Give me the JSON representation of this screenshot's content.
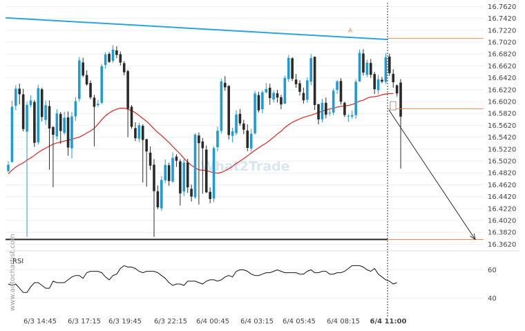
{
  "chart_data": {
    "type": "candlestick",
    "title": "",
    "watermark": "What2Trade",
    "side_label": "www.autochartist.com",
    "pattern_point_label": "A",
    "price_axis": {
      "ticks": [
        "16.7620",
        "16.7420",
        "16.7220",
        "16.7020",
        "16.6820",
        "16.6620",
        "16.6420",
        "16.6220",
        "16.6020",
        "16.5820",
        "16.5620",
        "16.5420",
        "16.5220",
        "16.5020",
        "16.4820",
        "16.4620",
        "16.4420",
        "16.4220",
        "16.4020",
        "16.3820",
        "16.3620"
      ],
      "ylim": [
        16.359,
        16.766
      ]
    },
    "time_axis": {
      "ticks": [
        "6/3 14:45",
        "6/3 17:15",
        "6/3 19:45",
        "6/3 22:15",
        "6/4 00:45",
        "6/4 03:15",
        "6/4 05:45",
        "6/4 08:15",
        "6/4 11:00"
      ],
      "current_label": "6/4 11:00"
    },
    "rsi": {
      "label": "RSI",
      "ticks": [
        "60",
        "40"
      ],
      "ylim": [
        28,
        72
      ],
      "values": [
        50,
        49,
        50,
        47,
        44,
        44,
        48,
        51,
        51,
        49,
        47,
        47,
        52,
        51,
        51,
        51,
        53,
        55,
        56,
        56,
        54,
        58,
        59,
        59,
        59,
        58,
        55,
        53,
        56,
        57,
        61,
        63,
        62,
        62,
        61,
        59,
        58,
        59,
        59,
        59,
        58,
        56,
        54,
        51,
        49,
        50,
        50,
        49,
        52,
        52,
        52,
        51,
        50,
        52,
        53,
        53,
        52,
        53,
        55,
        56,
        55,
        59,
        60,
        60,
        59,
        57,
        56,
        56,
        57,
        58,
        58,
        59,
        60,
        59,
        58,
        58,
        58,
        58,
        57,
        57,
        59,
        60,
        58,
        58,
        59,
        59,
        57,
        57,
        58,
        58,
        59,
        61,
        63,
        63,
        63,
        62,
        60,
        59,
        61,
        57,
        55,
        53,
        52,
        50,
        51
      ]
    },
    "resistance_line": {
      "start": 16.743,
      "end": 16.7065
    },
    "support_level": 16.37,
    "projection": {
      "from": 16.588,
      "to": 16.37
    },
    "level_lines": [
      16.7083,
      16.59,
      16.37
    ],
    "colors": {
      "bull": "#1c9bd8",
      "bear": "#2a2a2a",
      "ma": "#e0231a",
      "resistance": "#2ba3dc",
      "support": "#222222",
      "levels": "#f08a4b",
      "rsi": "#111111",
      "grid": "#eeeeee",
      "axis_text": "#444444",
      "label_a": "#f08a4b"
    },
    "candles": [
      [
        16.4852,
        16.4956,
        16.5019,
        16.4833
      ],
      [
        16.5002,
        16.5933,
        16.6033,
        16.4997
      ],
      [
        16.5949,
        16.6238,
        16.6296,
        16.5874
      ],
      [
        16.6238,
        16.6144,
        16.6322,
        16.5973
      ],
      [
        16.6143,
        16.5557,
        16.6236,
        16.552
      ],
      [
        16.5515,
        16.5965,
        16.6024,
        16.3743
      ],
      [
        16.596,
        16.604,
        16.6126,
        16.5926
      ],
      [
        16.6014,
        16.5327,
        16.6048,
        16.5257
      ],
      [
        16.5334,
        16.6246,
        16.6307,
        16.5293
      ],
      [
        16.6227,
        16.576,
        16.6253,
        16.5687
      ],
      [
        16.571,
        16.596,
        16.6038,
        16.5627
      ],
      [
        16.5945,
        16.5568,
        16.604,
        16.4874
      ],
      [
        16.5592,
        16.5462,
        16.5608,
        16.4579
      ],
      [
        16.5435,
        16.5821,
        16.5891,
        16.5381
      ],
      [
        16.5813,
        16.5525,
        16.5844,
        16.5307
      ],
      [
        16.5492,
        16.5749,
        16.5847,
        16.5461
      ],
      [
        16.5753,
        16.5247,
        16.5854,
        16.5111
      ],
      [
        16.5233,
        16.577,
        16.5846,
        16.5065
      ],
      [
        16.5771,
        16.6028,
        16.6096,
        16.5693
      ],
      [
        16.6066,
        16.6714,
        16.677,
        16.6026
      ],
      [
        16.6679,
        16.646,
        16.6759,
        16.6434
      ],
      [
        16.6468,
        16.6309,
        16.6546,
        16.6287
      ],
      [
        16.6333,
        16.6091,
        16.6376,
        16.6058
      ],
      [
        16.6087,
        16.5932,
        16.6133,
        16.5267
      ],
      [
        16.596,
        16.5985,
        16.6049,
        16.5926
      ],
      [
        16.5999,
        16.6616,
        16.6653,
        16.5979
      ],
      [
        16.6637,
        16.6814,
        16.6853,
        16.6573
      ],
      [
        16.6823,
        16.6687,
        16.6852,
        16.6672
      ],
      [
        16.6706,
        16.6896,
        16.697,
        16.6673
      ],
      [
        16.6882,
        16.6806,
        16.6951,
        16.6751
      ],
      [
        16.6817,
        16.6677,
        16.6863,
        16.6628
      ],
      [
        16.6667,
        16.6513,
        16.6702,
        16.6464
      ],
      [
        16.6534,
        16.5899,
        16.6558,
        16.5421
      ],
      [
        16.5934,
        16.5596,
        16.5963,
        16.5562
      ],
      [
        16.5574,
        16.5404,
        16.5672,
        16.5356
      ],
      [
        16.5396,
        16.5623,
        16.5662,
        16.5339
      ],
      [
        16.5612,
        16.5375,
        16.564,
        16.4658
      ],
      [
        16.5387,
        16.5181,
        16.5396,
        16.4588
      ],
      [
        16.5161,
        16.4942,
        16.5266,
        16.487
      ],
      [
        16.4958,
        16.4513,
        16.5053,
        16.3743
      ],
      [
        16.4511,
        16.4242,
        16.4609,
        16.4212
      ],
      [
        16.4223,
        16.4701,
        16.4766,
        16.4179
      ],
      [
        16.4695,
        16.4953,
        16.5046,
        16.4649
      ],
      [
        16.4948,
        16.4685,
        16.4992,
        16.4605
      ],
      [
        16.4674,
        16.5073,
        16.5166,
        16.4653
      ],
      [
        16.5096,
        16.5025,
        16.5135,
        16.492
      ],
      [
        16.5013,
        16.4476,
        16.5049,
        16.4271
      ],
      [
        16.4507,
        16.4992,
        16.5054,
        16.443
      ],
      [
        16.4998,
        16.4577,
        16.5058,
        16.4483
      ],
      [
        16.4552,
        16.4422,
        16.4623,
        16.434
      ],
      [
        16.4411,
        16.5462,
        16.5486,
        16.4387
      ],
      [
        16.545,
        16.5321,
        16.5501,
        16.4286
      ],
      [
        16.5349,
        16.5236,
        16.5407,
        16.447
      ],
      [
        16.5212,
        16.4493,
        16.528,
        16.4482
      ],
      [
        16.45,
        16.438,
        16.4576,
        16.4309
      ],
      [
        16.439,
        16.5237,
        16.527,
        16.4327
      ],
      [
        16.5253,
        16.5529,
        16.56,
        16.5183
      ],
      [
        16.5526,
        16.636,
        16.6401,
        16.5483
      ],
      [
        16.6337,
        16.626,
        16.6448,
        16.6204
      ],
      [
        16.6283,
        16.5457,
        16.6299,
        16.5383
      ],
      [
        16.5443,
        16.552,
        16.5579,
        16.5335
      ],
      [
        16.5489,
        16.5803,
        16.5877,
        16.5454
      ],
      [
        16.5814,
        16.5652,
        16.5895,
        16.5614
      ],
      [
        16.5651,
        16.5546,
        16.5714,
        16.5472
      ],
      [
        16.5533,
        16.5241,
        16.5638,
        16.5187
      ],
      [
        16.5232,
        16.5479,
        16.5563,
        16.5179
      ],
      [
        16.5487,
        16.6157,
        16.6201,
        16.5464
      ],
      [
        16.613,
        16.5873,
        16.6186,
        16.5837
      ],
      [
        16.5891,
        16.6177,
        16.6208,
        16.582
      ],
      [
        16.6176,
        16.6231,
        16.6333,
        16.6158
      ],
      [
        16.6252,
        16.6079,
        16.632,
        16.5966
      ],
      [
        16.6054,
        16.6168,
        16.6209,
        16.6005
      ],
      [
        16.616,
        16.6087,
        16.6216,
        16.6004
      ],
      [
        16.6094,
        16.5972,
        16.6134,
        16.5891
      ],
      [
        16.5985,
        16.6418,
        16.6455,
        16.5978
      ],
      [
        16.6398,
        16.6756,
        16.6805,
        16.6352
      ],
      [
        16.6749,
        16.6405,
        16.6767,
        16.6367
      ],
      [
        16.6391,
        16.6312,
        16.6485,
        16.6253
      ],
      [
        16.6329,
        16.6185,
        16.6378,
        16.6122
      ],
      [
        16.6165,
        16.6043,
        16.6256,
        16.5988
      ],
      [
        16.6052,
        16.6377,
        16.6428,
        16.6003
      ],
      [
        16.6355,
        16.6752,
        16.682,
        16.6295
      ],
      [
        16.6774,
        16.5963,
        16.678,
        16.5879
      ],
      [
        16.5976,
        16.572,
        16.5984,
        16.5637
      ],
      [
        16.5722,
        16.6,
        16.6064,
        16.567
      ],
      [
        16.6,
        16.58,
        16.609,
        16.5738
      ],
      [
        16.5823,
        16.5832,
        16.5909,
        16.578
      ],
      [
        16.5835,
        16.6203,
        16.6239,
        16.5792
      ],
      [
        16.6216,
        16.636,
        16.6383,
        16.6146
      ],
      [
        16.6367,
        16.6018,
        16.6413,
        16.5971
      ],
      [
        16.5999,
        16.5794,
        16.6019,
        16.576
      ],
      [
        16.5771,
        16.578,
        16.5807,
        16.5678
      ],
      [
        16.5768,
        16.5794,
        16.5873,
        16.5731
      ],
      [
        16.5792,
        16.6354,
        16.6395,
        16.5727
      ],
      [
        16.6359,
        16.6841,
        16.6897,
        16.6353
      ],
      [
        16.6829,
        16.6509,
        16.6901,
        16.646
      ],
      [
        16.6472,
        16.6675,
        16.6724,
        16.6433
      ],
      [
        16.667,
        16.6471,
        16.6738,
        16.642
      ],
      [
        16.6484,
        16.6229,
        16.6522,
        16.6148
      ],
      [
        16.6212,
        16.6395,
        16.647,
        16.614
      ],
      [
        16.6388,
        16.6356,
        16.6436,
        16.6328
      ],
      [
        16.6353,
        16.6766,
        16.6838,
        16.6318
      ],
      [
        16.6777,
        16.6499,
        16.6828,
        16.6452
      ],
      [
        16.6488,
        16.6346,
        16.6565,
        16.6255
      ],
      [
        16.6294,
        16.6157,
        16.631,
        16.6106
      ],
      [
        16.6341,
        16.5767,
        16.6399,
        16.4891
      ]
    ],
    "ma": [
      16.4806,
      16.4866,
      16.4919,
      16.4958,
      16.4989,
      16.5035,
      16.5073,
      16.5117,
      16.5164,
      16.5203,
      16.5237,
      16.527,
      16.5305,
      16.5324,
      16.534,
      16.5356,
      16.5369,
      16.5387,
      16.5405,
      16.5423,
      16.5454,
      16.5492,
      16.5526,
      16.557,
      16.564,
      16.5716,
      16.5781,
      16.583,
      16.5866,
      16.5894,
      16.591,
      16.5909,
      16.5891,
      16.5869,
      16.5833,
      16.5787,
      16.5735,
      16.5689,
      16.5626,
      16.556,
      16.55,
      16.5448,
      16.539,
      16.5332,
      16.5265,
      16.52,
      16.5138,
      16.5065,
      16.5001,
      16.4948,
      16.4905,
      16.4871,
      16.4864,
      16.486,
      16.4841,
      16.4823,
      16.4816,
      16.4829,
      16.4857,
      16.489,
      16.493,
      16.498,
      16.5018,
      16.5061,
      16.5105,
      16.5155,
      16.5201,
      16.5242,
      16.5285,
      16.5322,
      16.537,
      16.542,
      16.5476,
      16.5522,
      16.5583,
      16.5631,
      16.5672,
      16.5702,
      16.573,
      16.5755,
      16.5774,
      16.5791,
      16.5812,
      16.5838,
      16.5858,
      16.5879,
      16.5896,
      16.5908,
      16.5927,
      16.5941,
      16.5946,
      16.5955,
      16.597,
      16.5996,
      16.6028,
      16.6045,
      16.6077,
      16.61,
      16.6102,
      16.6115,
      16.6136,
      16.6148,
      16.6154,
      16.6154
    ]
  }
}
